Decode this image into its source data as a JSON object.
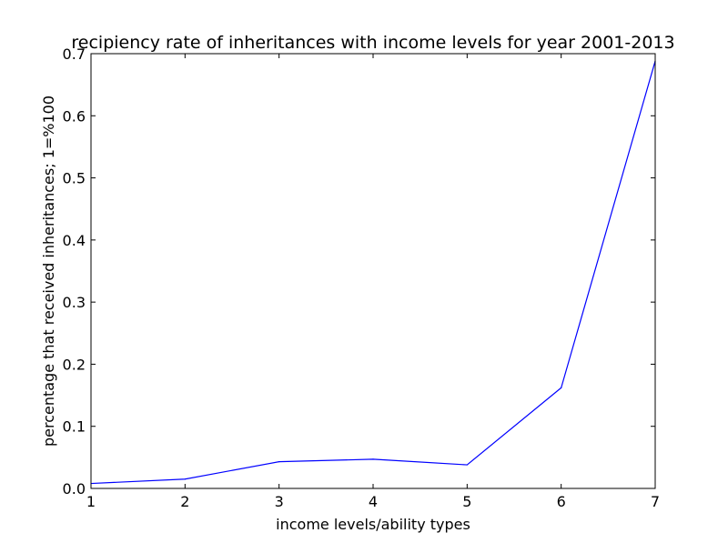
{
  "chart_data": {
    "type": "line",
    "title": "recipiency rate of inheritances with income levels for year 2001-2013",
    "xlabel": "income levels/ability types",
    "ylabel": "percentage that received inheritances; 1=%100",
    "xlim": [
      1,
      7
    ],
    "ylim": [
      0.0,
      0.7
    ],
    "x_ticks": [
      "1",
      "2",
      "3",
      "4",
      "5",
      "6",
      "7"
    ],
    "y_ticks": [
      "0.0",
      "0.1",
      "0.2",
      "0.3",
      "0.4",
      "0.5",
      "0.6",
      "0.7"
    ],
    "grid": false,
    "series": [
      {
        "color": "#0000ff",
        "x": [
          1,
          2,
          3,
          4,
          5,
          6,
          7
        ],
        "y": [
          0.008,
          0.015,
          0.043,
          0.047,
          0.038,
          0.162,
          0.688
        ]
      }
    ]
  }
}
